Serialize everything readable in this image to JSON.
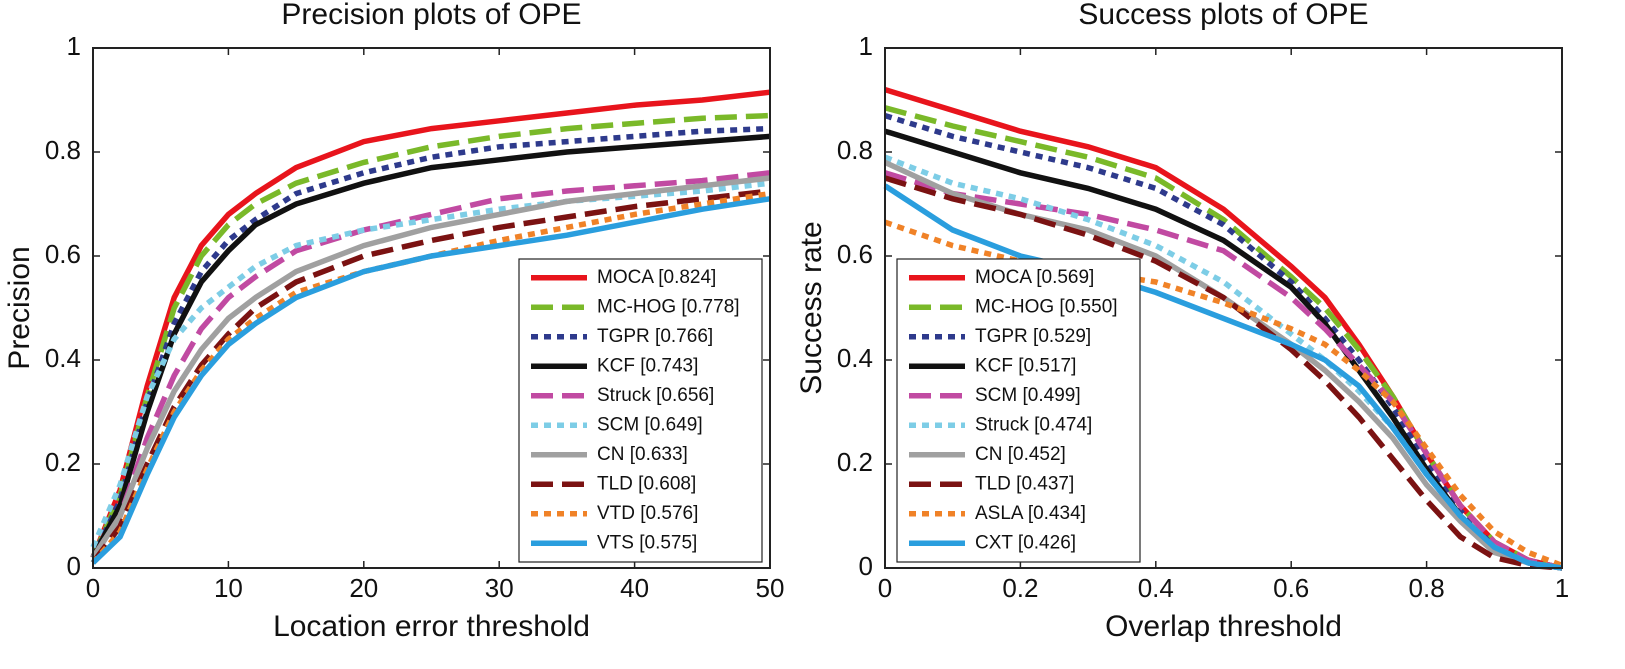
{
  "chart_data": [
    {
      "type": "line",
      "title": "Precision plots of OPE",
      "x_label": "Location error threshold",
      "y_label": "Precision",
      "xlim": [
        0,
        50
      ],
      "ylim": [
        0,
        1
      ],
      "xticks": [
        0,
        10,
        20,
        30,
        40,
        50
      ],
      "yticks": [
        0,
        0.2,
        0.4,
        0.6,
        0.8,
        1
      ],
      "legend": "lower right",
      "x": [
        0,
        2,
        4,
        6,
        8,
        10,
        12,
        15,
        20,
        25,
        30,
        35,
        40,
        45,
        50
      ],
      "series": [
        {
          "name": "MOCA [0.824]",
          "color": "#e8141c",
          "dash": "solid",
          "values": [
            0.02,
            0.15,
            0.35,
            0.52,
            0.62,
            0.68,
            0.72,
            0.77,
            0.82,
            0.845,
            0.86,
            0.875,
            0.89,
            0.9,
            0.915
          ]
        },
        {
          "name": "MC-HOG [0.778]",
          "color": "#7ab929",
          "dash": "dashed",
          "values": [
            0.02,
            0.14,
            0.33,
            0.5,
            0.6,
            0.66,
            0.7,
            0.74,
            0.78,
            0.81,
            0.83,
            0.845,
            0.855,
            0.865,
            0.87
          ]
        },
        {
          "name": "TGPR [0.766]",
          "color": "#2e3a8c",
          "dash": "dotted",
          "values": [
            0.02,
            0.13,
            0.32,
            0.47,
            0.57,
            0.63,
            0.67,
            0.72,
            0.76,
            0.79,
            0.81,
            0.82,
            0.83,
            0.84,
            0.845
          ]
        },
        {
          "name": "KCF [0.743]",
          "color": "#111111",
          "dash": "solid",
          "values": [
            0.02,
            0.12,
            0.3,
            0.45,
            0.55,
            0.61,
            0.66,
            0.7,
            0.74,
            0.77,
            0.785,
            0.8,
            0.81,
            0.82,
            0.83
          ]
        },
        {
          "name": "Struck [0.656]",
          "color": "#c14aa2",
          "dash": "dashed",
          "values": [
            0.02,
            0.1,
            0.25,
            0.37,
            0.46,
            0.52,
            0.56,
            0.61,
            0.65,
            0.68,
            0.71,
            0.725,
            0.735,
            0.745,
            0.76
          ]
        },
        {
          "name": "SCM [0.649]",
          "color": "#7dcde6",
          "dash": "dotted",
          "values": [
            0.04,
            0.16,
            0.33,
            0.44,
            0.5,
            0.54,
            0.58,
            0.62,
            0.65,
            0.67,
            0.69,
            0.705,
            0.715,
            0.725,
            0.74
          ]
        },
        {
          "name": "CN [0.633]",
          "color": "#a0a0a0",
          "dash": "solid",
          "values": [
            0.02,
            0.1,
            0.23,
            0.34,
            0.42,
            0.48,
            0.52,
            0.57,
            0.62,
            0.655,
            0.68,
            0.705,
            0.72,
            0.735,
            0.75
          ]
        },
        {
          "name": "TLD [0.608]",
          "color": "#7b1212",
          "dash": "dashed",
          "values": [
            0.01,
            0.08,
            0.2,
            0.31,
            0.39,
            0.45,
            0.5,
            0.55,
            0.6,
            0.63,
            0.655,
            0.675,
            0.695,
            0.71,
            0.725
          ]
        },
        {
          "name": "VTD [0.576]",
          "color": "#f08227",
          "dash": "dotted",
          "values": [
            0.01,
            0.07,
            0.19,
            0.3,
            0.38,
            0.44,
            0.48,
            0.53,
            0.57,
            0.6,
            0.63,
            0.655,
            0.68,
            0.7,
            0.72
          ]
        },
        {
          "name": "VTS [0.575]",
          "color": "#2a9ede",
          "dash": "solid",
          "values": [
            0.01,
            0.06,
            0.18,
            0.29,
            0.37,
            0.43,
            0.47,
            0.52,
            0.57,
            0.6,
            0.62,
            0.64,
            0.665,
            0.69,
            0.71
          ]
        }
      ]
    },
    {
      "type": "line",
      "title": "Success plots of OPE",
      "x_label": "Overlap threshold",
      "y_label": "Success rate",
      "xlim": [
        0,
        1
      ],
      "ylim": [
        0,
        1
      ],
      "xticks": [
        0,
        0.2,
        0.4,
        0.6,
        0.8,
        1
      ],
      "yticks": [
        0,
        0.2,
        0.4,
        0.6,
        0.8,
        1
      ],
      "legend": "lower left",
      "x": [
        0,
        0.1,
        0.2,
        0.3,
        0.4,
        0.5,
        0.6,
        0.65,
        0.7,
        0.75,
        0.8,
        0.85,
        0.9,
        0.95,
        1
      ],
      "series": [
        {
          "name": "MOCA [0.569]",
          "color": "#e8141c",
          "dash": "solid",
          "values": [
            0.92,
            0.88,
            0.84,
            0.81,
            0.77,
            0.69,
            0.58,
            0.52,
            0.43,
            0.33,
            0.22,
            0.12,
            0.05,
            0.015,
            0
          ]
        },
        {
          "name": "MC-HOG [0.550]",
          "color": "#7ab929",
          "dash": "dashed",
          "values": [
            0.885,
            0.85,
            0.82,
            0.79,
            0.75,
            0.67,
            0.56,
            0.5,
            0.42,
            0.33,
            0.22,
            0.12,
            0.05,
            0.015,
            0
          ]
        },
        {
          "name": "TGPR [0.529]",
          "color": "#2e3a8c",
          "dash": "dotted",
          "values": [
            0.87,
            0.83,
            0.8,
            0.77,
            0.73,
            0.66,
            0.55,
            0.48,
            0.4,
            0.31,
            0.2,
            0.11,
            0.04,
            0.01,
            0
          ]
        },
        {
          "name": "KCF [0.517]",
          "color": "#111111",
          "dash": "solid",
          "values": [
            0.84,
            0.8,
            0.76,
            0.73,
            0.69,
            0.63,
            0.54,
            0.47,
            0.38,
            0.29,
            0.19,
            0.1,
            0.04,
            0.01,
            0
          ]
        },
        {
          "name": "SCM [0.499]",
          "color": "#c14aa2",
          "dash": "dashed",
          "values": [
            0.76,
            0.72,
            0.7,
            0.68,
            0.65,
            0.61,
            0.52,
            0.46,
            0.39,
            0.32,
            0.22,
            0.12,
            0.05,
            0.015,
            0
          ]
        },
        {
          "name": "Struck [0.474]",
          "color": "#7dcde6",
          "dash": "dotted",
          "values": [
            0.79,
            0.74,
            0.71,
            0.67,
            0.62,
            0.55,
            0.45,
            0.4,
            0.34,
            0.27,
            0.18,
            0.1,
            0.04,
            0.01,
            0
          ]
        },
        {
          "name": "CN [0.452]",
          "color": "#a0a0a0",
          "dash": "solid",
          "values": [
            0.78,
            0.72,
            0.68,
            0.65,
            0.6,
            0.52,
            0.43,
            0.38,
            0.32,
            0.25,
            0.16,
            0.09,
            0.03,
            0.01,
            0
          ]
        },
        {
          "name": "TLD [0.437]",
          "color": "#7b1212",
          "dash": "dashed",
          "values": [
            0.75,
            0.71,
            0.68,
            0.64,
            0.59,
            0.52,
            0.42,
            0.36,
            0.29,
            0.21,
            0.13,
            0.06,
            0.02,
            0.005,
            0
          ]
        },
        {
          "name": "ASLA [0.434]",
          "color": "#f08227",
          "dash": "dotted",
          "values": [
            0.665,
            0.62,
            0.59,
            0.57,
            0.55,
            0.51,
            0.46,
            0.43,
            0.38,
            0.32,
            0.23,
            0.14,
            0.07,
            0.03,
            0.005
          ]
        },
        {
          "name": "CXT [0.426]",
          "color": "#2a9ede",
          "dash": "solid",
          "values": [
            0.735,
            0.65,
            0.6,
            0.57,
            0.53,
            0.48,
            0.43,
            0.4,
            0.35,
            0.27,
            0.18,
            0.1,
            0.04,
            0.01,
            0
          ]
        }
      ]
    }
  ]
}
